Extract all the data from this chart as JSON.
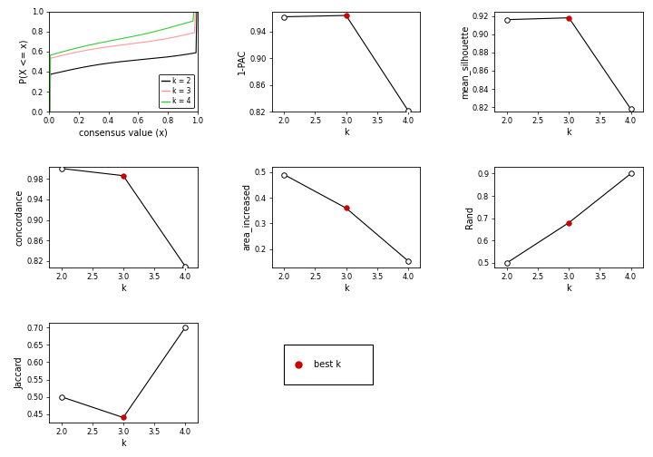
{
  "ecdf": {
    "k2": {
      "color": "#000000",
      "lw": 0.8
    },
    "k3": {
      "color": "#ff9999",
      "lw": 0.8
    },
    "k4": {
      "color": "#33cc33",
      "lw": 0.8
    }
  },
  "one_minus_PAC": {
    "k": [
      2,
      3,
      4
    ],
    "y": [
      0.962,
      0.964,
      0.822
    ],
    "best_k": 3,
    "ylabel": "1-PAC",
    "ylim": [
      0.82,
      0.97
    ],
    "yticks": [
      0.82,
      0.86,
      0.9,
      0.94
    ]
  },
  "mean_silhouette": {
    "k": [
      2,
      3,
      4
    ],
    "y": [
      0.916,
      0.918,
      0.818
    ],
    "best_k": 3,
    "ylabel": "mean_silhouette",
    "ylim": [
      0.815,
      0.925
    ],
    "yticks": [
      0.82,
      0.84,
      0.86,
      0.88,
      0.9,
      0.92
    ]
  },
  "concordance": {
    "k": [
      2,
      3,
      4
    ],
    "y": [
      1.0,
      0.986,
      0.81
    ],
    "best_k": 3,
    "ylabel": "concordance",
    "ylim": [
      0.808,
      1.003
    ],
    "yticks": [
      0.82,
      0.86,
      0.9,
      0.94,
      0.98
    ]
  },
  "area_increased": {
    "k": [
      2,
      3,
      4
    ],
    "y": [
      0.49,
      0.36,
      0.155
    ],
    "best_k": 3,
    "ylabel": "area_increased",
    "ylim": [
      0.13,
      0.52
    ],
    "yticks": [
      0.2,
      0.3,
      0.4,
      0.5
    ]
  },
  "Rand": {
    "k": [
      2,
      3,
      4
    ],
    "y": [
      0.5,
      0.68,
      0.9
    ],
    "best_k": 3,
    "ylabel": "Rand",
    "ylim": [
      0.48,
      0.93
    ],
    "yticks": [
      0.5,
      0.6,
      0.7,
      0.8,
      0.9
    ]
  },
  "Jaccard": {
    "k": [
      2,
      3,
      4
    ],
    "y": [
      0.5,
      0.44,
      0.7
    ],
    "best_k": 3,
    "ylabel": "Jaccard",
    "ylim": [
      0.425,
      0.715
    ],
    "yticks": [
      0.45,
      0.5,
      0.55,
      0.6,
      0.65,
      0.7
    ]
  },
  "k_xlim": [
    1.8,
    4.2
  ],
  "k_xticks": [
    2.0,
    2.5,
    3.0,
    3.5,
    4.0
  ],
  "bg_color": "#ffffff",
  "line_color": "#000000",
  "best_k_color": "#cc0000",
  "open_dot_color": "#000000",
  "tick_fontsize": 6,
  "label_fontsize": 7,
  "marker_size": 4
}
